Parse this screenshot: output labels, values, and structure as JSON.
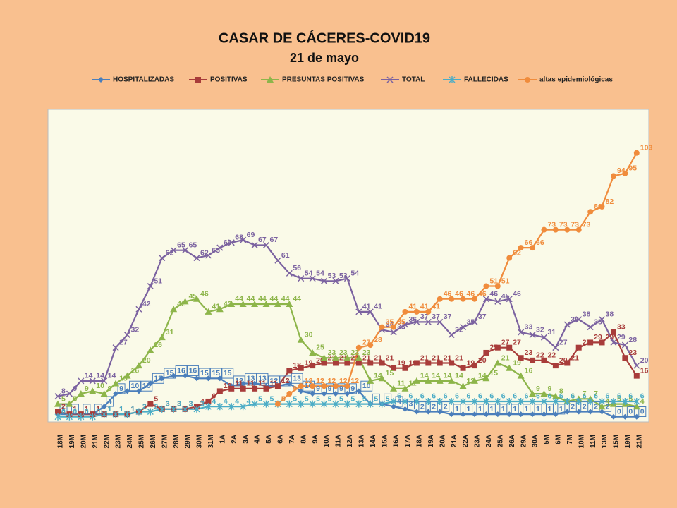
{
  "chart_data": {
    "type": "line",
    "title": "CASAR DE CÁCERES-COVID19",
    "subtitle": "21 de mayo",
    "categories": [
      "18M",
      "19M",
      "20M",
      "21M",
      "22M",
      "23M",
      "24M",
      "25M",
      "26M",
      "27M",
      "28M",
      "29M",
      "30M",
      "31M",
      "1A",
      "2A",
      "3A",
      "4A",
      "5A",
      "6A",
      "7A",
      "8A",
      "9A",
      "10A",
      "11A",
      "12A",
      "13A",
      "14A",
      "15A",
      "16A",
      "17A",
      "18A",
      "19A",
      "20A",
      "21A",
      "22A",
      "23A",
      "24A",
      "25A",
      "26A",
      "29A",
      "30A",
      "5M",
      "6M",
      "7M",
      "10M",
      "11M",
      "13M",
      "15M",
      "19M",
      "21M"
    ],
    "ylim": [
      -2,
      120
    ],
    "grid": false,
    "legend": "top",
    "data_labels": true,
    "series": [
      {
        "name": "HOSPITALIZADAS",
        "color": "#4a7ebb",
        "marker": "diamond",
        "label_box": true,
        "values": [
          1,
          1,
          1,
          1,
          4,
          9,
          10,
          10,
          13,
          15,
          16,
          16,
          15,
          15,
          15,
          12,
          13,
          13,
          12,
          12,
          13,
          10,
          9,
          9,
          9,
          9,
          10,
          5,
          5,
          4,
          3,
          2,
          2,
          2,
          1,
          1,
          1,
          1,
          1,
          1,
          1,
          1,
          1,
          1,
          2,
          2,
          2,
          2,
          0,
          0,
          0
        ]
      },
      {
        "name": "POSITIVAS",
        "color": "#a83c3a",
        "marker": "square",
        "values": [
          2,
          1,
          1,
          1,
          1,
          1,
          1,
          2,
          5,
          3,
          3,
          3,
          4,
          6,
          10,
          11,
          11,
          11,
          11,
          12,
          18,
          19,
          20,
          21,
          21,
          21,
          21,
          21,
          21,
          19,
          19,
          21,
          21,
          21,
          21,
          19,
          20,
          25,
          27,
          27,
          23,
          22,
          22,
          20,
          21,
          27,
          29,
          29,
          33,
          23,
          16
        ]
      },
      {
        "name": "PRESUNTAS POSITIVAS",
        "color": "#8db54a",
        "marker": "triangle",
        "values": [
          5,
          5,
          9,
          10,
          9,
          13,
          16,
          20,
          26,
          31,
          42,
          45,
          46,
          41,
          42,
          44,
          44,
          44,
          44,
          44,
          44,
          30,
          25,
          23,
          23,
          23,
          23,
          14,
          15,
          11,
          11,
          14,
          14,
          14,
          14,
          12,
          14,
          15,
          21,
          19,
          16,
          9,
          9,
          8,
          6,
          7,
          7,
          4,
          5,
          5,
          4
        ]
      },
      {
        "name": "TOTAL",
        "color": "#7b62a0",
        "marker": "x",
        "values": [
          8,
          9,
          14,
          14,
          14,
          27,
          32,
          42,
          51,
          62,
          65,
          65,
          62,
          63,
          66,
          68,
          69,
          67,
          67,
          61,
          56,
          54,
          54,
          53,
          53,
          54,
          41,
          41,
          34,
          33,
          36,
          37,
          37,
          37,
          32,
          35,
          37,
          46,
          45,
          46,
          33,
          32,
          31,
          27,
          36,
          38,
          35,
          38,
          29,
          28,
          20
        ]
      },
      {
        "name": "FALLECIDAS",
        "color": "#4bacc6",
        "marker": "star",
        "values": [
          0,
          0,
          0,
          0,
          1,
          1,
          1,
          2,
          2,
          3,
          3,
          3,
          3,
          4,
          4,
          4,
          4,
          5,
          5,
          5,
          5,
          5,
          5,
          5,
          5,
          5,
          5,
          5,
          5,
          6,
          6,
          6,
          6,
          6,
          6,
          6,
          6,
          6,
          6,
          6,
          6,
          6,
          6,
          6,
          6,
          6,
          6,
          6,
          6,
          6,
          6
        ]
      },
      {
        "name": "altas epidemiológicas",
        "color": "#f08c3c",
        "marker": "circle",
        "values": [
          null,
          null,
          null,
          null,
          null,
          null,
          null,
          null,
          null,
          null,
          null,
          null,
          null,
          null,
          null,
          null,
          null,
          null,
          null,
          5,
          9,
          12,
          12,
          12,
          12,
          12,
          27,
          28,
          35,
          35,
          41,
          41,
          41,
          46,
          46,
          46,
          46,
          51,
          51,
          62,
          66,
          66,
          73,
          73,
          73,
          73,
          80,
          82,
          94,
          95,
          103
        ]
      }
    ]
  }
}
